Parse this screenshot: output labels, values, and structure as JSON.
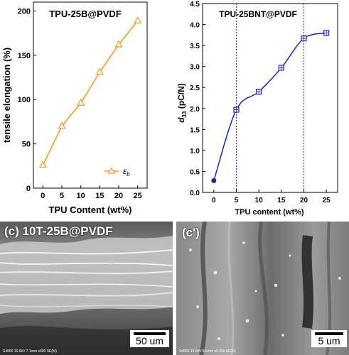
{
  "panels": {
    "left_chart": {
      "title": "TPU-25B@PVDF",
      "xlabel": "TPU Content (wt%)",
      "ylabel": "tensile elongation (%)",
      "legend": "ε",
      "legend_sub": "b"
    },
    "right_chart": {
      "title": "TPU-25BNT@PVDF",
      "xlabel": "TPU content (wt%)",
      "ylabel_main": "d",
      "ylabel_sub": "33",
      "ylabel_unit": " (pC/N)"
    },
    "sem_left": {
      "label": "(c) 10T-25B@PVDF",
      "scale": "50 um",
      "footer": "S4800 10.0kV 7.1mm x600 SE(M)"
    },
    "sem_right": {
      "label": "(c')",
      "scale": "5 um",
      "footer": "S4800 10.0kV 8.6mm x5.00k SE(M)"
    }
  },
  "colors": {
    "orange": "#f39c1a",
    "blue": "#1f1fd6",
    "red_dash": "#e0001a",
    "blue_dash": "#2e2ee6",
    "navy_point": "#1a2a9a"
  },
  "chart_data": [
    {
      "type": "line",
      "title": "TPU-25B@PVDF",
      "xlabel": "TPU Content (wt%)",
      "ylabel": "tensile elongation (%)",
      "x": [
        0,
        5,
        10,
        15,
        20,
        25
      ],
      "series": [
        {
          "name": "ε_b",
          "values": [
            26,
            70,
            96,
            131,
            162,
            189
          ]
        }
      ],
      "xlim": [
        -2.5,
        27.5
      ],
      "ylim": [
        0,
        210
      ],
      "xticks": [
        0,
        5,
        10,
        15,
        20,
        25
      ],
      "yticks": [
        0,
        50,
        100,
        150,
        200
      ],
      "legend": "bottom-right",
      "grid": false
    },
    {
      "type": "line",
      "title": "TPU-25BNT@PVDF",
      "xlabel": "TPU content (wt%)",
      "ylabel": "d33 (pC/N)",
      "x": [
        0,
        5,
        10,
        15,
        20,
        25
      ],
      "series": [
        {
          "values": [
            0.28,
            1.97,
            2.4,
            2.97,
            3.67,
            3.8
          ]
        }
      ],
      "xlim": [
        -2.5,
        27.5
      ],
      "ylim": [
        0.0,
        4.5
      ],
      "xticks": [
        0,
        5,
        10,
        15,
        20,
        25
      ],
      "yticks": [
        0.0,
        0.5,
        1.0,
        1.5,
        2.0,
        2.5,
        3.0,
        3.5,
        4.0,
        4.5
      ],
      "vlines": [
        5,
        20
      ],
      "grid": false
    }
  ]
}
